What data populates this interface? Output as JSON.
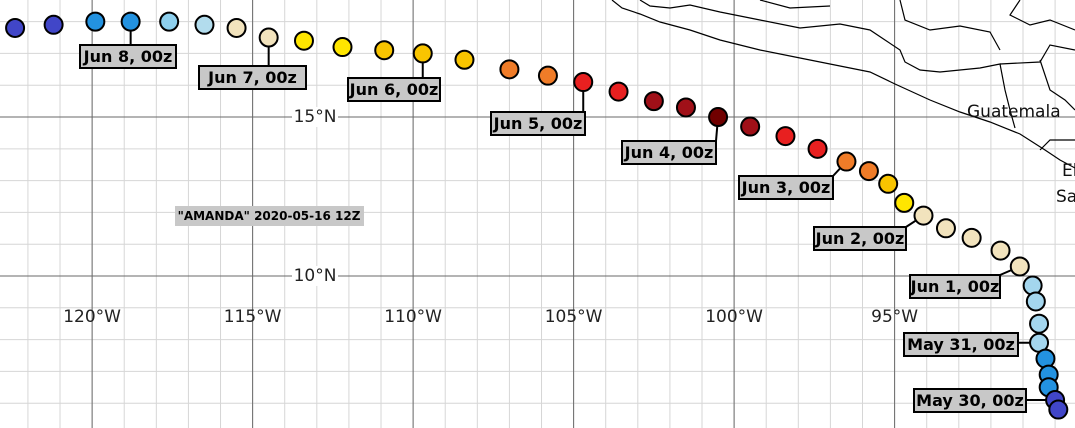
{
  "map": {
    "title": "\"AMANDA\" 2020-05-16 12Z",
    "xlim": [
      -122.87,
      -89.38
    ],
    "ylim": [
      5.22,
      18.68
    ],
    "minor_step": 1,
    "xticks": [
      {
        "value": -120,
        "label": "120°W"
      },
      {
        "value": -115,
        "label": "115°W"
      },
      {
        "value": -110,
        "label": "110°W"
      },
      {
        "value": -105,
        "label": "105°W"
      },
      {
        "value": -100,
        "label": "100°W"
      },
      {
        "value": -95,
        "label": "95°W"
      }
    ],
    "yticks": [
      {
        "value": 15,
        "label": "15°N"
      },
      {
        "value": 10,
        "label": "10°N"
      }
    ],
    "places": [
      "Guatemala",
      "El",
      "Salvador"
    ],
    "track": [
      {
        "lon": -122.4,
        "lat": 17.8,
        "color": "#4146c8"
      },
      {
        "lon": -121.2,
        "lat": 17.9,
        "color": "#4146c8"
      },
      {
        "lon": -119.9,
        "lat": 18.0,
        "color": "#2392e0"
      },
      {
        "lon": -118.8,
        "lat": 18.0,
        "color": "#2392e0",
        "label": "Jun 8, 00z"
      },
      {
        "lon": -117.6,
        "lat": 18.0,
        "color": "#8ed0ee"
      },
      {
        "lon": -116.5,
        "lat": 17.9,
        "color": "#b2dced"
      },
      {
        "lon": -115.5,
        "lat": 17.8,
        "color": "#f2e3bd"
      },
      {
        "lon": -114.5,
        "lat": 17.5,
        "color": "#f2e3bd",
        "label": "Jun 7, 00z"
      },
      {
        "lon": -113.4,
        "lat": 17.4,
        "color": "#ffe600"
      },
      {
        "lon": -112.2,
        "lat": 17.2,
        "color": "#ffe600"
      },
      {
        "lon": -110.9,
        "lat": 17.1,
        "color": "#f8c400"
      },
      {
        "lon": -109.7,
        "lat": 17.0,
        "color": "#f8c400",
        "label": "Jun 6, 00z"
      },
      {
        "lon": -108.4,
        "lat": 16.8,
        "color": "#f8c400"
      },
      {
        "lon": -107.0,
        "lat": 16.5,
        "color": "#f07c28"
      },
      {
        "lon": -105.8,
        "lat": 16.3,
        "color": "#f07c28"
      },
      {
        "lon": -104.7,
        "lat": 16.1,
        "color": "#e82020",
        "label": "Jun 5, 00z"
      },
      {
        "lon": -103.6,
        "lat": 15.8,
        "color": "#e82020"
      },
      {
        "lon": -102.5,
        "lat": 15.5,
        "color": "#a01018"
      },
      {
        "lon": -101.5,
        "lat": 15.3,
        "color": "#a01018"
      },
      {
        "lon": -100.5,
        "lat": 15.0,
        "color": "#700000",
        "label": "Jun 4, 00z"
      },
      {
        "lon": -99.5,
        "lat": 14.7,
        "color": "#a01018"
      },
      {
        "lon": -98.4,
        "lat": 14.4,
        "color": "#e82020"
      },
      {
        "lon": -97.4,
        "lat": 14.0,
        "color": "#e82020"
      },
      {
        "lon": -96.5,
        "lat": 13.6,
        "color": "#f07c28",
        "label": "Jun 3, 00z"
      },
      {
        "lon": -95.8,
        "lat": 13.3,
        "color": "#f07c28"
      },
      {
        "lon": -95.2,
        "lat": 12.9,
        "color": "#f8c400"
      },
      {
        "lon": -94.7,
        "lat": 12.3,
        "color": "#ffe600"
      },
      {
        "lon": -94.1,
        "lat": 11.9,
        "color": "#f2e3bd",
        "label": "Jun 2, 00z"
      },
      {
        "lon": -93.4,
        "lat": 11.5,
        "color": "#f2e3bd"
      },
      {
        "lon": -92.6,
        "lat": 11.2,
        "color": "#f2e3bd"
      },
      {
        "lon": -91.7,
        "lat": 10.8,
        "color": "#f2e3bd"
      },
      {
        "lon": -91.1,
        "lat": 10.3,
        "color": "#f2e3bd",
        "label": "Jun 1, 00z"
      },
      {
        "lon": -90.7,
        "lat": 9.7,
        "color": "#a4d6ee"
      },
      {
        "lon": -90.6,
        "lat": 9.2,
        "color": "#a4d6ee"
      },
      {
        "lon": -90.5,
        "lat": 8.5,
        "color": "#a4d6ee"
      },
      {
        "lon": -90.5,
        "lat": 7.9,
        "color": "#a4d6ee",
        "label": "May 31, 00z"
      },
      {
        "lon": -90.3,
        "lat": 7.4,
        "color": "#2392e0"
      },
      {
        "lon": -90.2,
        "lat": 6.9,
        "color": "#2392e0"
      },
      {
        "lon": -90.2,
        "lat": 6.5,
        "color": "#2392e0"
      },
      {
        "lon": -90.0,
        "lat": 6.1,
        "color": "#4146c8",
        "label": "May 30, 00z"
      },
      {
        "lon": -89.9,
        "lat": 5.8,
        "color": "#4146c8"
      }
    ]
  }
}
